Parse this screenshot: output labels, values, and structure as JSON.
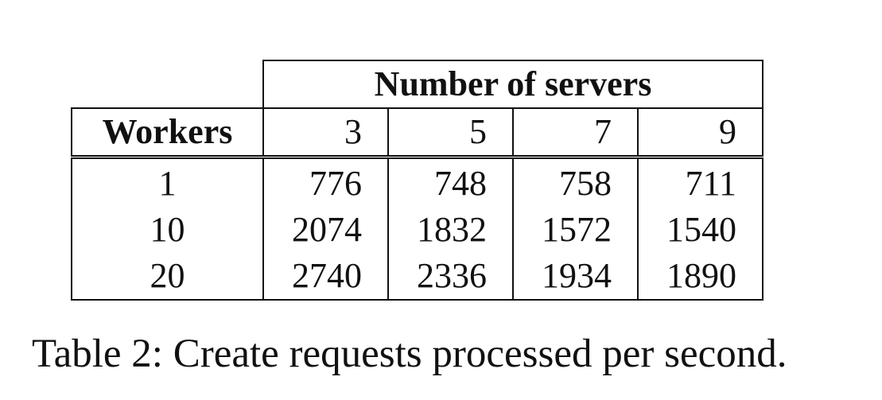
{
  "table": {
    "group_header": "Number of servers",
    "row_header": "Workers",
    "server_counts": [
      "3",
      "5",
      "7",
      "9"
    ],
    "rows": [
      {
        "workers": "1",
        "values": [
          "776",
          "748",
          "758",
          "711"
        ]
      },
      {
        "workers": "10",
        "values": [
          "2074",
          "1832",
          "1572",
          "1540"
        ]
      },
      {
        "workers": "20",
        "values": [
          "2740",
          "2336",
          "1934",
          "1890"
        ]
      }
    ]
  },
  "caption": "Table 2: Create requests processed per second."
}
